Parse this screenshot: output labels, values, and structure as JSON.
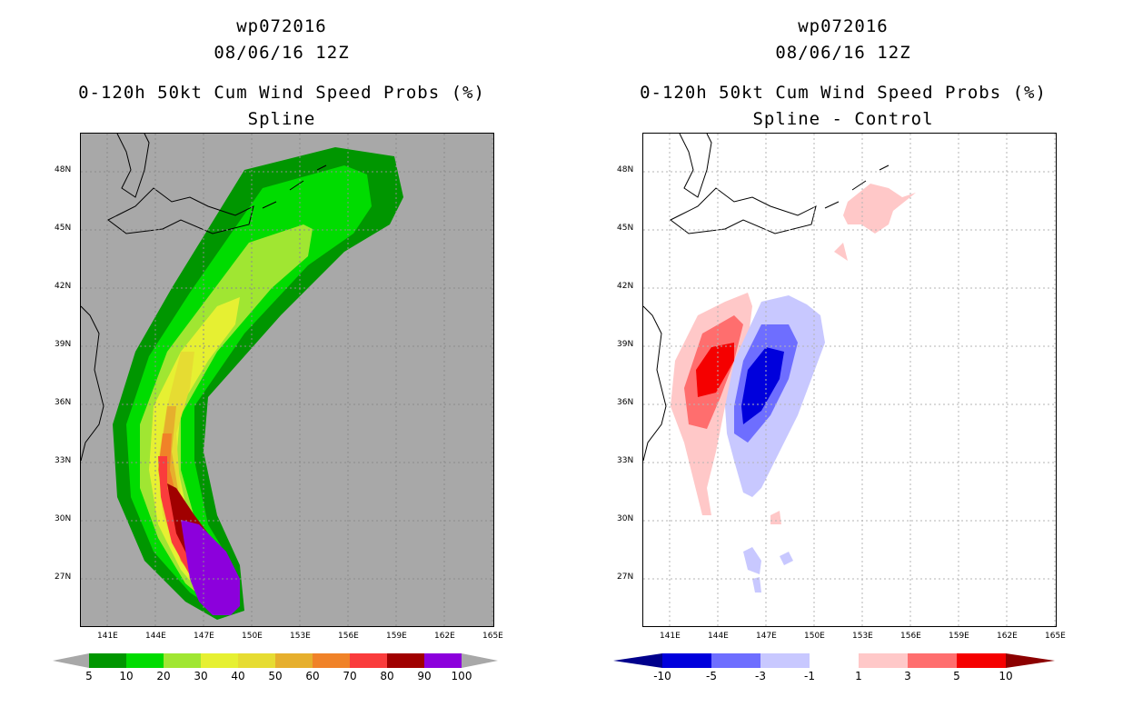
{
  "panels": [
    {
      "id": "left",
      "storm_id": "wp072016",
      "datetime": "08/06/16 12Z",
      "product": "0-120h 50kt Cum Wind Speed Probs (%)",
      "subtitle": "Spline",
      "background_color": "#a8a8a8",
      "colorbar": {
        "labels": [
          "5",
          "10",
          "20",
          "30",
          "40",
          "50",
          "60",
          "70",
          "80",
          "90",
          "100"
        ],
        "colors": [
          "#009600",
          "#00dc00",
          "#a0e632",
          "#e6f032",
          "#e6dc32",
          "#e6af2d",
          "#f08228",
          "#fa3c3c",
          "#a00000",
          "#8c00dc"
        ],
        "low_color": "#a8a8a8",
        "high_color": "#a8a8a8"
      }
    },
    {
      "id": "right",
      "storm_id": "wp072016",
      "datetime": "08/06/16 12Z",
      "product": "0-120h 50kt Cum Wind Speed Probs (%)",
      "subtitle": "Spline - Control",
      "background_color": "#ffffff",
      "colorbar": {
        "labels": [
          "-10",
          "-5",
          "-3",
          "-1",
          "1",
          "3",
          "5",
          "10"
        ],
        "colors": [
          "#0000dc",
          "#6e6eff",
          "#c8c8ff",
          "#ffffff",
          "#ffc8c8",
          "#ff6e6e",
          "#f50000"
        ],
        "low_color": "#00008c",
        "high_color": "#8c0000"
      }
    }
  ],
  "axes": {
    "lon_labels": [
      "141E",
      "144E",
      "147E",
      "150E",
      "153E",
      "156E",
      "159E",
      "162E",
      "165E"
    ],
    "lat_labels": [
      "48N",
      "45N",
      "42N",
      "39N",
      "36N",
      "33N",
      "30N",
      "27N"
    ]
  }
}
